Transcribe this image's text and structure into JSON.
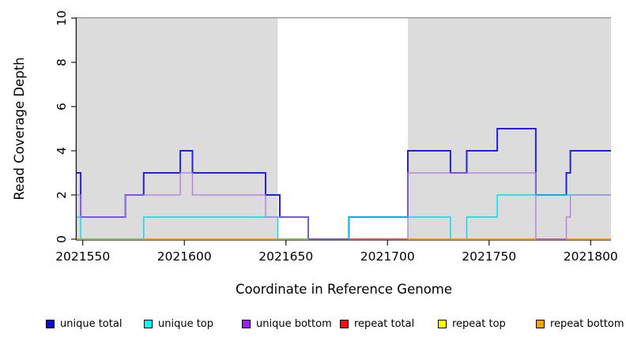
{
  "chart_data": {
    "type": "line",
    "subtype": "step",
    "title": "",
    "xlabel": "Coordinate in Reference Genome",
    "ylabel": "Read Coverage Depth",
    "xlim": [
      2021547,
      2021810
    ],
    "ylim": [
      0,
      10
    ],
    "x_ticks": [
      2021550,
      2021600,
      2021650,
      2021700,
      2021750,
      2021800
    ],
    "y_ticks": [
      0,
      2,
      4,
      6,
      8,
      10
    ],
    "grid": false,
    "legend_position": "bottom",
    "plot_bg": "#ffffff",
    "shaded_regions": [
      {
        "from": 2021547,
        "to": 2021646,
        "color": "#dcdcdc"
      },
      {
        "from": 2021710,
        "to": 2021810,
        "color": "#dcdcdc"
      }
    ],
    "top_border_color": "#8f8f8f",
    "axis_color": "#1a1a1a",
    "series": [
      {
        "name": "unique total",
        "color": "#2222dc",
        "legend_color": "#0d0dcf",
        "width": 2,
        "steps": [
          [
            2021547,
            3
          ],
          [
            2021549,
            1
          ],
          [
            2021571,
            2
          ],
          [
            2021580,
            3
          ],
          [
            2021598,
            4
          ],
          [
            2021604,
            3
          ],
          [
            2021640,
            2
          ],
          [
            2021647,
            1
          ],
          [
            2021661,
            0
          ],
          [
            2021681,
            1
          ],
          [
            2021710,
            4
          ],
          [
            2021731,
            3
          ],
          [
            2021739,
            4
          ],
          [
            2021754,
            5
          ],
          [
            2021773,
            2
          ],
          [
            2021788,
            3
          ],
          [
            2021790,
            4
          ]
        ],
        "end": 2021810
      },
      {
        "name": "unique top",
        "color": "#00dcee",
        "legend_color": "#00ffff",
        "width": 1.4,
        "steps": [
          [
            2021547,
            1
          ],
          [
            2021549,
            0
          ],
          [
            2021580,
            1
          ],
          [
            2021646,
            0
          ],
          [
            2021681,
            1
          ],
          [
            2021731,
            0
          ],
          [
            2021739,
            1
          ],
          [
            2021754,
            2
          ]
        ],
        "end": 2021810
      },
      {
        "name": "unique bottom",
        "color": "#b07ae0",
        "legend_color": "#a020f0",
        "width": 1.3,
        "steps": [
          [
            2021547,
            2
          ],
          [
            2021549,
            1
          ],
          [
            2021571,
            2
          ],
          [
            2021598,
            3
          ],
          [
            2021604,
            2
          ],
          [
            2021640,
            1
          ],
          [
            2021661,
            0
          ],
          [
            2021710,
            3
          ],
          [
            2021773,
            0
          ],
          [
            2021788,
            1
          ],
          [
            2021790,
            2
          ]
        ],
        "end": 2021810
      },
      {
        "name": "repeat total",
        "color": "#ee1111",
        "legend_color": "#ee1111",
        "width": 1.3,
        "steps": [
          [
            2021547,
            0
          ]
        ],
        "end": 2021810
      },
      {
        "name": "repeat top",
        "color": "#ffff00",
        "legend_color": "#ffff00",
        "width": 1.3,
        "steps": [
          [
            2021547,
            0
          ]
        ],
        "end": 2021810
      },
      {
        "name": "repeat bottom",
        "color": "#ff9500",
        "legend_color": "#ffa200",
        "width": 1.7,
        "steps": [
          [
            2021547,
            0
          ]
        ],
        "end": 2021810
      }
    ],
    "baseline_overlaps": [
      {
        "from": 2021549,
        "to": 2021580,
        "color": "#66c07a"
      },
      {
        "from": 2021646,
        "to": 2021661,
        "color": "#66c07a"
      },
      {
        "from": 2021661,
        "to": 2021681,
        "color": "#5348d6"
      },
      {
        "from": 2021681,
        "to": 2021710,
        "color": "#c24b66"
      },
      {
        "from": 2021773,
        "to": 2021788,
        "color": "#b055c6"
      }
    ]
  }
}
